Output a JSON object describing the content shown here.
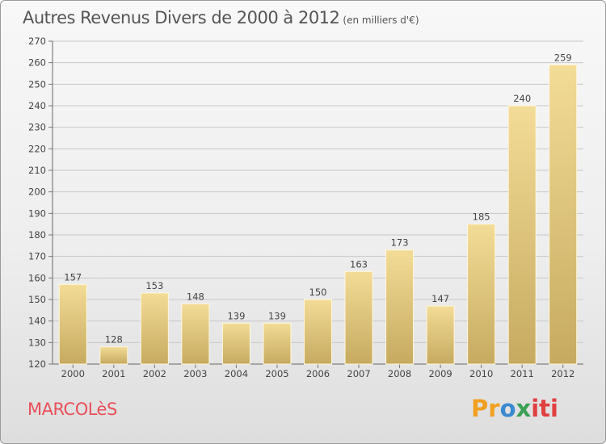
{
  "title": "Autres Revenus Divers de 2000 à 2012",
  "subtitle": "(en milliers d'€)",
  "commune": "MARCOLèS",
  "logo": "Proxiti",
  "colors": {
    "bar_top": "#f3dc97",
    "bar_bottom": "#c6aa60",
    "commune": "#e8505a",
    "grid": "#c8c8c8"
  },
  "chart_data": {
    "type": "bar",
    "title": "Autres Revenus Divers de 2000 à 2012",
    "subtitle": "(en milliers d'€)",
    "categories": [
      "2000",
      "2001",
      "2002",
      "2003",
      "2004",
      "2005",
      "2006",
      "2007",
      "2008",
      "2009",
      "2010",
      "2011",
      "2012"
    ],
    "values": [
      157,
      128,
      153,
      148,
      139,
      139,
      150,
      163,
      173,
      147,
      185,
      240,
      259
    ],
    "ylim": [
      120,
      270
    ],
    "yticks": [
      120,
      130,
      140,
      150,
      160,
      170,
      180,
      190,
      200,
      210,
      220,
      230,
      240,
      250,
      260,
      270
    ],
    "grid": true,
    "data_labels": true
  }
}
